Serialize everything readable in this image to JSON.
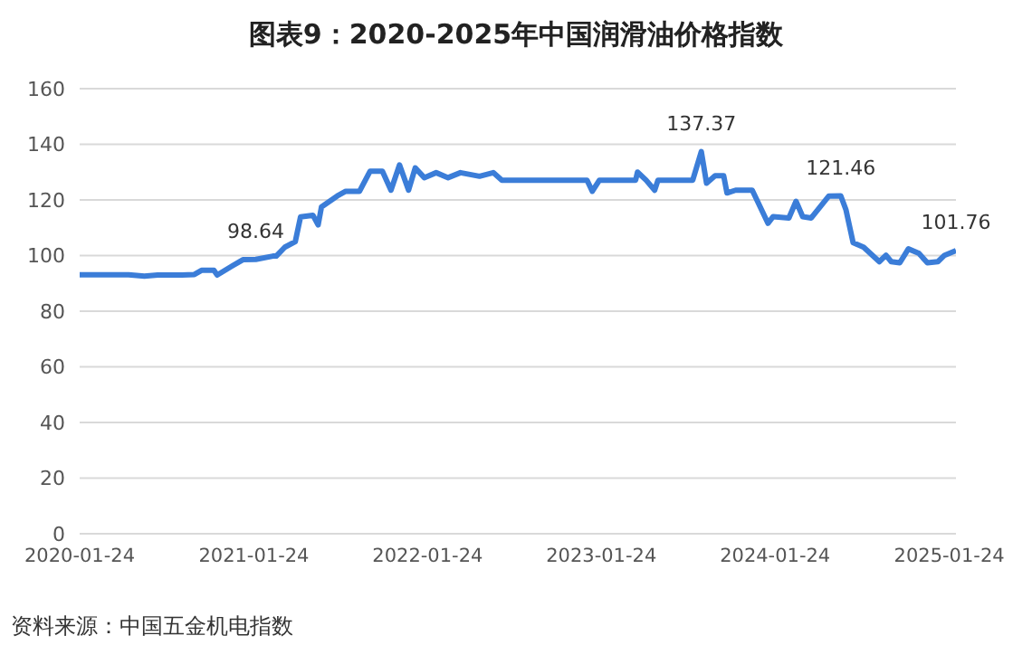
{
  "chart_data": {
    "type": "line",
    "title": "图表9：2020-2025年中国润滑油价格指数",
    "annotations": [
      "资料来源：中国五金机电指数"
    ],
    "x": [
      "2020-01-24",
      "2020-05-06",
      "2020-06-08",
      "2020-07-06",
      "2020-08-26",
      "2020-09-21",
      "2020-10-06",
      "2020-11-01",
      "2020-11-08",
      "2020-12-07",
      "2021-01-01",
      "2021-01-28",
      "2021-03-05",
      "2021-03-12",
      "2021-03-30",
      "2021-04-21",
      "2021-05-02",
      "2021-05-28",
      "2021-06-08",
      "2021-06-15",
      "2021-07-18",
      "2021-08-05",
      "2021-09-03",
      "2021-09-25",
      "2021-10-21",
      "2021-11-08",
      "2021-11-26",
      "2021-12-15",
      "2021-12-29",
      "2022-01-17",
      "2022-02-11",
      "2022-03-08",
      "2022-04-03",
      "2022-05-13",
      "2022-06-11",
      "2022-06-29",
      "2022-12-25",
      "2023-01-05",
      "2023-01-20",
      "2023-04-06",
      "2023-04-10",
      "2023-04-28",
      "2023-05-16",
      "2023-05-23",
      "2023-08-04",
      "2023-08-22",
      "2023-09-02",
      "2023-09-20",
      "2023-10-08",
      "2023-10-15",
      "2023-11-02",
      "2023-12-07",
      "2024-01-09",
      "2024-01-20",
      "2024-02-22",
      "2024-03-08",
      "2024-03-22",
      "2024-04-09",
      "2024-05-16",
      "2024-06-10",
      "2024-06-21",
      "2024-07-06",
      "2024-07-28",
      "2024-08-30",
      "2024-09-13",
      "2024-09-24",
      "2024-10-12",
      "2024-10-30",
      "2024-11-21",
      "2024-12-09",
      "2024-12-31",
      "2025-01-14",
      "2025-02-07"
    ],
    "series": [
      {
        "color": "#3b7dd8",
        "values": [
          93.1,
          93.1,
          92.6,
          93,
          93,
          93.2,
          94.7,
          94.7,
          93,
          96,
          98.5,
          98.64,
          99.8,
          99.8,
          103,
          105,
          113.9,
          114.5,
          111,
          117.5,
          121.4,
          123.1,
          123.1,
          130.3,
          130.3,
          123.5,
          132.6,
          123.5,
          131.5,
          128,
          129.8,
          128,
          129.8,
          128.5,
          129.8,
          127.1,
          127.1,
          123.1,
          127.1,
          127.1,
          130,
          127.1,
          123.5,
          127.1,
          127.1,
          137.37,
          126,
          128.7,
          128.7,
          122.5,
          123.5,
          123.5,
          111.6,
          114,
          113.5,
          119.5,
          114,
          113.5,
          121.4,
          121.46,
          116.4,
          104.6,
          103,
          97.8,
          100.1,
          97.8,
          97.4,
          102.4,
          100.8,
          97.4,
          97.8,
          100.1,
          101.76
        ],
        "value_labels": [
          null,
          null,
          null,
          null,
          null,
          null,
          null,
          null,
          null,
          null,
          null,
          "98.64",
          null,
          null,
          null,
          null,
          null,
          null,
          null,
          null,
          null,
          null,
          null,
          null,
          null,
          null,
          null,
          null,
          null,
          null,
          null,
          null,
          null,
          null,
          null,
          null,
          null,
          null,
          null,
          null,
          null,
          null,
          null,
          null,
          null,
          "137.37",
          null,
          null,
          null,
          null,
          null,
          null,
          null,
          null,
          null,
          null,
          null,
          null,
          null,
          "121.46",
          null,
          null,
          null,
          null,
          null,
          null,
          null,
          null,
          null,
          null,
          null,
          null,
          "101.76"
        ]
      }
    ],
    "xlim": [
      "2020-01-24",
      "2025-02-07"
    ],
    "xticks": [
      "2020-01-24",
      "2021-01-24",
      "2022-01-24",
      "2023-01-24",
      "2024-01-24",
      "2025-01-24"
    ],
    "ylim": [
      0,
      160
    ],
    "yticks": [
      0,
      20,
      40,
      60,
      80,
      100,
      120,
      140,
      160
    ],
    "grid": "y",
    "legend": false,
    "marker": "none",
    "line_style": "solid"
  }
}
